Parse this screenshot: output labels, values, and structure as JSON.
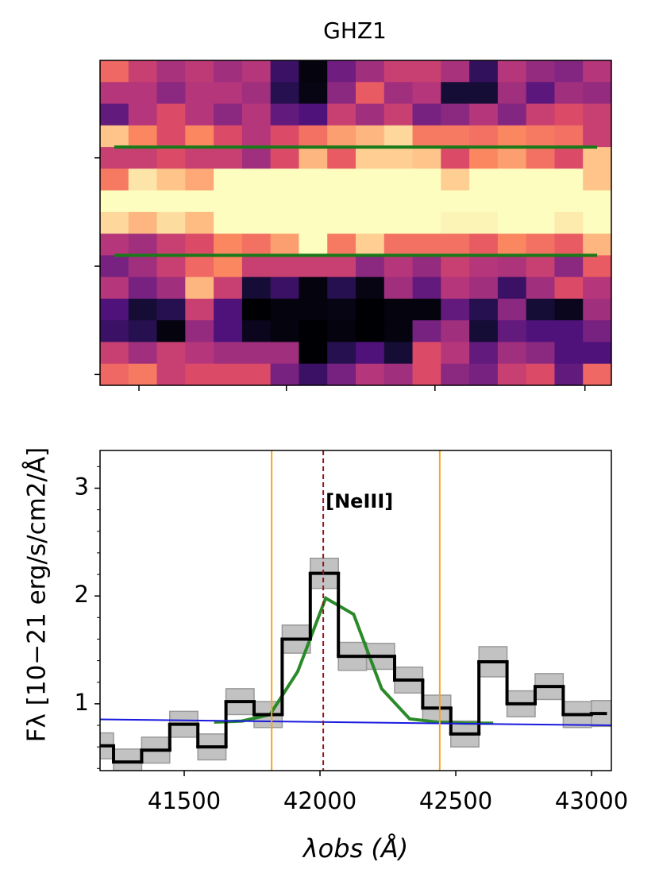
{
  "chart_data": [
    {
      "type": "heatmap",
      "title": "GHZ1",
      "colormap": "magma",
      "z": [
        [
          0.68,
          0.55,
          0.47,
          0.52,
          0.45,
          0.5,
          0.2,
          0.02,
          0.33,
          0.45,
          0.55,
          0.55,
          0.47,
          0.18,
          0.5,
          0.42,
          0.38,
          0.5
        ],
        [
          0.5,
          0.5,
          0.4,
          0.5,
          0.5,
          0.45,
          0.15,
          0.03,
          0.4,
          0.65,
          0.45,
          0.5,
          0.1,
          0.1,
          0.45,
          0.28,
          0.45,
          0.42
        ],
        [
          0.3,
          0.5,
          0.6,
          0.5,
          0.4,
          0.5,
          0.3,
          0.25,
          0.55,
          0.45,
          0.55,
          0.35,
          0.4,
          0.5,
          0.38,
          0.55,
          0.6,
          0.55
        ],
        [
          0.88,
          0.75,
          0.6,
          0.75,
          0.6,
          0.5,
          0.6,
          0.7,
          0.8,
          0.85,
          0.92,
          0.72,
          0.72,
          0.7,
          0.75,
          0.72,
          0.7,
          0.55
        ],
        [
          0.55,
          0.55,
          0.6,
          0.55,
          0.55,
          0.45,
          0.6,
          0.85,
          0.65,
          0.9,
          0.9,
          0.88,
          0.6,
          0.75,
          0.8,
          0.7,
          0.6,
          0.88
        ],
        [
          0.72,
          0.95,
          0.88,
          0.82,
          1,
          1,
          1,
          1,
          1,
          1,
          1,
          1,
          0.9,
          1,
          1,
          1,
          1,
          0.88
        ],
        [
          1,
          1,
          1,
          1,
          1,
          1,
          1,
          1,
          1,
          1,
          1,
          1,
          1,
          1,
          1,
          1,
          1,
          1
        ],
        [
          0.92,
          0.85,
          0.93,
          0.86,
          1,
          1,
          1,
          1,
          1,
          1,
          1,
          1,
          0.98,
          0.98,
          1,
          1,
          0.96,
          1
        ],
        [
          0.5,
          0.45,
          0.55,
          0.6,
          0.75,
          0.7,
          0.8,
          1,
          0.72,
          0.9,
          0.7,
          0.7,
          0.7,
          0.65,
          0.75,
          0.7,
          0.65,
          0.85
        ],
        [
          0.35,
          0.45,
          0.55,
          0.68,
          0.75,
          0.55,
          0.55,
          0.55,
          0.55,
          0.4,
          0.5,
          0.42,
          0.55,
          0.5,
          0.48,
          0.55,
          0.4,
          0.65
        ],
        [
          0.5,
          0.35,
          0.45,
          0.85,
          0.55,
          0.1,
          0.2,
          0.02,
          0.15,
          0.03,
          0.45,
          0.3,
          0.5,
          0.45,
          0.2,
          0.45,
          0.6,
          0.5
        ],
        [
          0.25,
          0.1,
          0.15,
          0.55,
          0.25,
          0,
          0.02,
          0.02,
          0.03,
          0,
          0.02,
          0.02,
          0.3,
          0.15,
          0.4,
          0.1,
          0.05,
          0.45
        ],
        [
          0.2,
          0.15,
          0.02,
          0.42,
          0.25,
          0.05,
          0.02,
          0,
          0.02,
          0,
          0.02,
          0.35,
          0.45,
          0.1,
          0.3,
          0.25,
          0.25,
          0.35
        ],
        [
          0.55,
          0.45,
          0.55,
          0.5,
          0.45,
          0.45,
          0.45,
          0,
          0.15,
          0.25,
          0.1,
          0.6,
          0.5,
          0.3,
          0.45,
          0.4,
          0.25,
          0.25
        ],
        [
          0.68,
          0.72,
          0.55,
          0.6,
          0.6,
          0.6,
          0.35,
          0.2,
          0.35,
          0.5,
          0.45,
          0.6,
          0.4,
          0.35,
          0.55,
          0.6,
          0.3,
          0.68
        ]
      ],
      "xticks": [
        0.87,
        6.06,
        11.29,
        16.57
      ],
      "yticks": [
        4,
        9,
        14
      ],
      "aperture": {
        "rows": [
          3.5,
          8.5
        ],
        "x": [
          0,
          17
        ],
        "color": "#1a7a1a"
      }
    },
    {
      "type": "step",
      "xlabel": "λobs (Å)",
      "ylabel": "Fλ [10−21 erg/s/cm2/Å]",
      "x": [
        41188,
        41291.5,
        41395,
        41498.5,
        41602,
        41705.5,
        41809,
        41912.5,
        42016,
        42119.5,
        42223,
        42326.5,
        42430,
        42533.5,
        42637,
        42740.5,
        42844,
        42947.5,
        43051
      ],
      "values": [
        0.61,
        0.46,
        0.57,
        0.81,
        0.6,
        1.02,
        0.9,
        1.6,
        2.21,
        1.44,
        1.44,
        1.22,
        0.96,
        0.72,
        1.39,
        1.0,
        1.16,
        0.9,
        0.91
      ],
      "errors": [
        0.12,
        0.12,
        0.12,
        0.12,
        0.12,
        0.12,
        0.12,
        0.13,
        0.14,
        0.13,
        0.12,
        0.12,
        0.12,
        0.12,
        0.14,
        0.12,
        0.12,
        0.12,
        0.12
      ],
      "color": "#000000",
      "error_color": "#999999",
      "model": {
        "x": [
          41610,
          41713,
          41816,
          41918,
          42021,
          42124,
          42227,
          42330,
          42432,
          42535,
          42638
        ],
        "values": [
          0.83,
          0.84,
          0.9,
          1.3,
          1.98,
          1.83,
          1.14,
          0.86,
          0.83,
          0.82,
          0.82
        ],
        "color": "#2a8a2a"
      },
      "continuum": {
        "x": [
          41190,
          43073
        ],
        "values": [
          0.855,
          0.8
        ],
        "color": "#1a1adf"
      },
      "window_lines": {
        "x": [
          41822,
          42441
        ],
        "color": "#f5a623"
      },
      "line_marker": {
        "x": 42012,
        "label": "[NeIII]",
        "color": "#8b1a1a"
      },
      "xlim": [
        41190,
        43073
      ],
      "ylim": [
        0.38,
        3.35
      ],
      "xticks": [
        41500,
        42000,
        42500,
        43000
      ],
      "yticks": [
        1,
        2,
        3
      ],
      "yminor": [
        0.4,
        0.6,
        0.8,
        1.2,
        1.4,
        1.6,
        1.8,
        2.2,
        2.4,
        2.6,
        2.8,
        3.2
      ]
    }
  ]
}
